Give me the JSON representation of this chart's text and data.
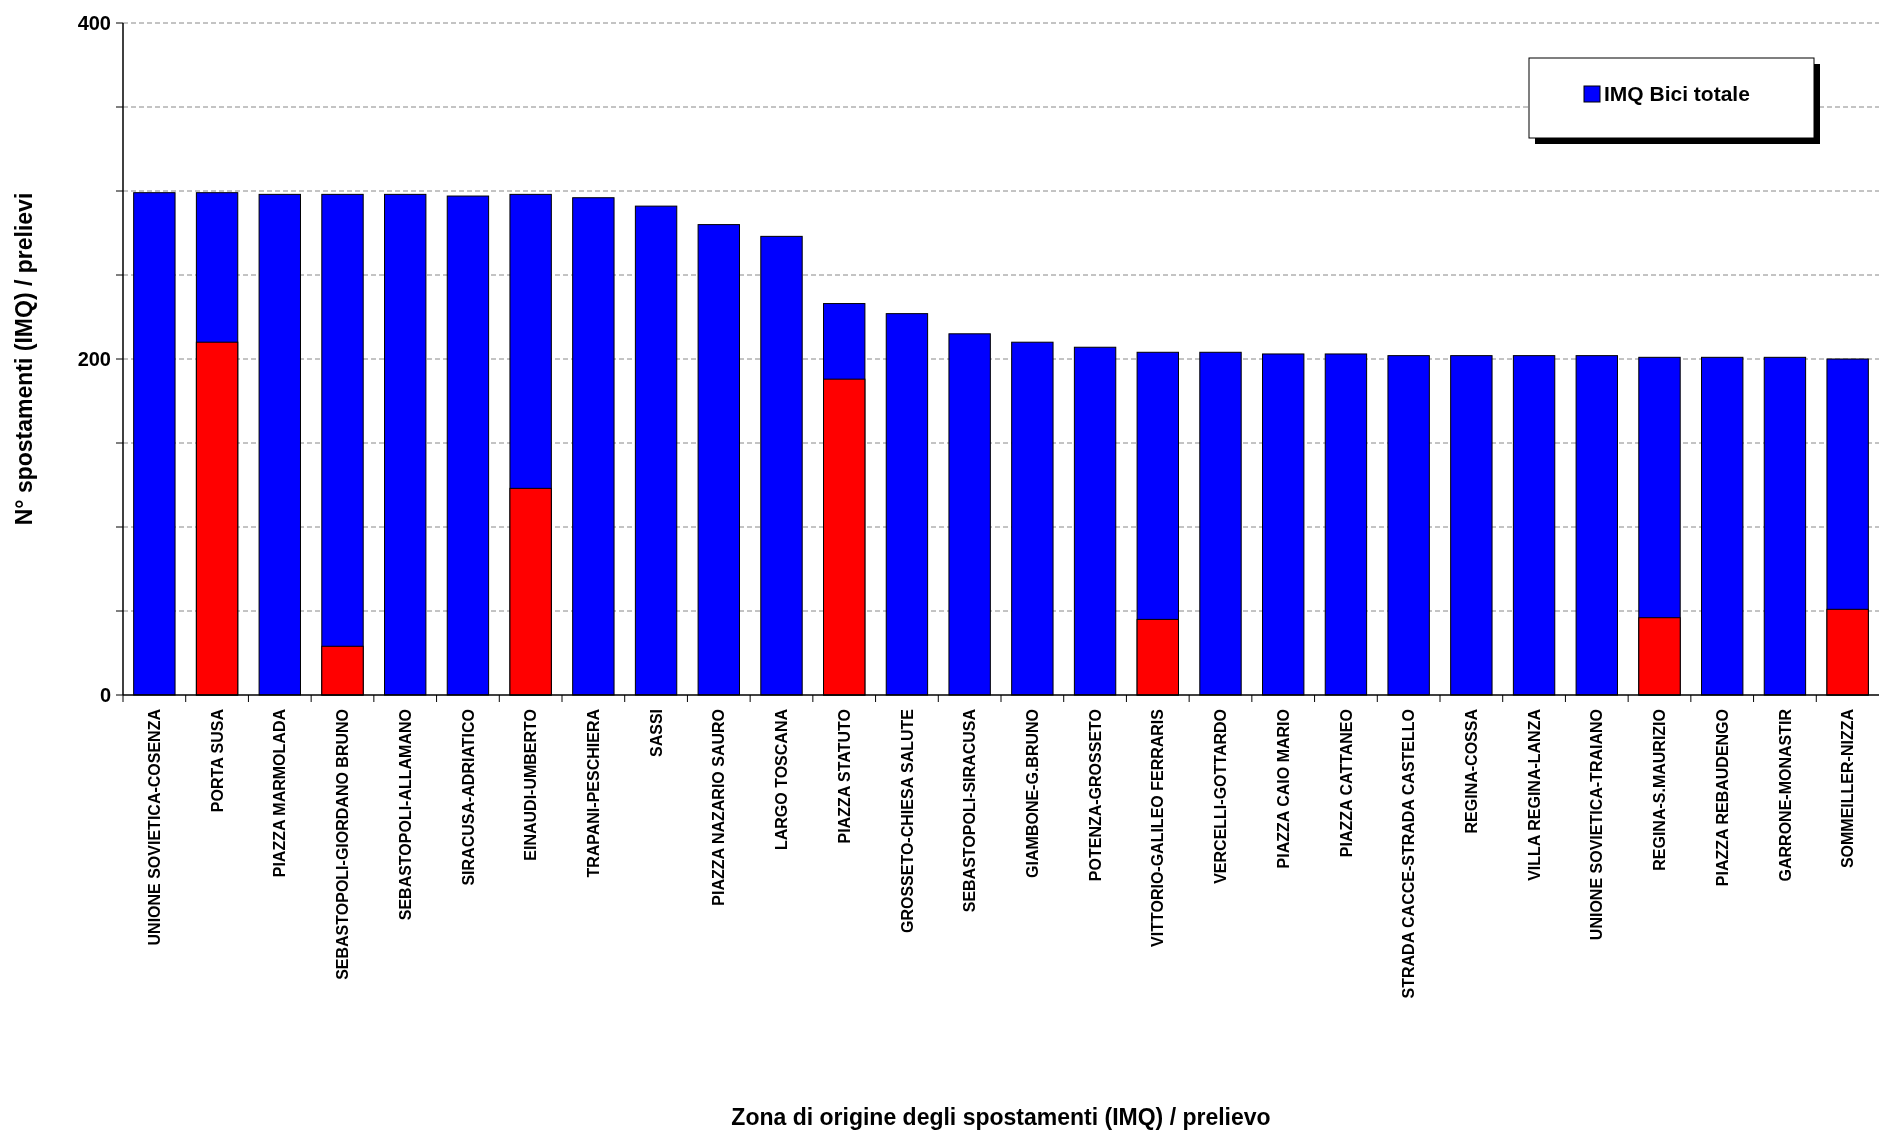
{
  "chart_data": {
    "type": "bar",
    "xlabel": "Zona di origine degli spostamenti (IMQ) / prelievo",
    "ylabel": "N° spostamenti (IMQ) / prelievi",
    "categories": [
      "UNIONE SOVIETICA-COSENZA",
      "PORTA SUSA",
      "PIAZZA MARMOLADA",
      "SEBASTOPOLI-GIORDANO BRUNO",
      "SEBASTOPOLI-ALLAMANO",
      "SIRACUSA-ADRIATICO",
      "EINAUDI-UMBERTO",
      "TRAPANI-PESCHIERA",
      "SASSI",
      "PIAZZA NAZARIO SAURO",
      "LARGO TOSCANA",
      "PIAZZA STATUTO",
      "GROSSETO-CHIESA SALUTE",
      "SEBASTOPOLI-SIRACUSA",
      "GIAMBONE-G.BRUNO",
      "POTENZA-GROSSETO",
      "VITTORIO-GALILEO FERRARIS",
      "VERCELLI-GOTTARDO",
      "PIAZZA CAIO MARIO",
      "PIAZZA CATTANEO",
      "STRADA CACCE-STRADA CASTELLO",
      "REGINA-COSSA",
      "VILLA REGINA-LANZA",
      "UNIONE SOVIETICA-TRAIANO",
      "REGINA-S.MAURIZIO",
      "PIAZZA REBAUDENGO",
      "GARRONE-MONASTIR",
      "SOMMEILLER-NIZZA"
    ],
    "series": [
      {
        "name": "IMQ Bici totale",
        "color": "#0000ff",
        "values": [
          299,
          299,
          298,
          298,
          298,
          297,
          298,
          296,
          291,
          280,
          273,
          233,
          227,
          215,
          210,
          207,
          204,
          204,
          203,
          203,
          202,
          202,
          202,
          202,
          201,
          201,
          201,
          200
        ]
      },
      {
        "color": "#ff0000",
        "values": [
          null,
          210,
          null,
          29,
          null,
          null,
          123,
          null,
          null,
          null,
          null,
          188,
          null,
          null,
          null,
          null,
          45,
          null,
          null,
          null,
          null,
          null,
          null,
          null,
          46,
          null,
          null,
          51
        ]
      }
    ],
    "ylim": [
      0,
      400
    ],
    "yticks": [
      0,
      {
        "value": 50,
        "label": null
      },
      {
        "value": 100,
        "label": null
      },
      {
        "value": 150,
        "label": null
      },
      200,
      {
        "value": 250,
        "label": null
      },
      {
        "value": 300,
        "label": null
      },
      {
        "value": 350,
        "label": null
      },
      400
    ],
    "grid": "y",
    "legend": "top right"
  }
}
